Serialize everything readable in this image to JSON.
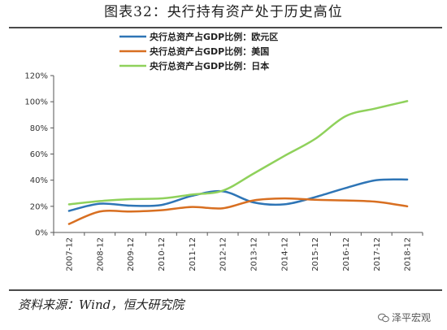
{
  "title": "图表32：央行持有资产处于历史高位",
  "source": "资料来源：Wind，恒大研究院",
  "watermark": "泽平宏观",
  "chart_data": {
    "type": "line",
    "categories": [
      "2007-12",
      "2008-12",
      "2009-12",
      "2010-12",
      "2011-12",
      "2012-12",
      "2013-12",
      "2014-12",
      "2015-12",
      "2016-12",
      "2017-12",
      "2018-12"
    ],
    "ylim": [
      0,
      120
    ],
    "yticks": [
      0,
      20,
      40,
      60,
      80,
      100,
      120
    ],
    "ytick_labels": [
      "0%",
      "20%",
      "40%",
      "60%",
      "80%",
      "100%",
      "120%"
    ],
    "legend_position": "top-center",
    "series": [
      {
        "name": "央行总资产占GDP比例：欧元区",
        "color": "#2e75b6",
        "values": [
          16.5,
          22,
          20.5,
          21,
          28,
          31.5,
          23,
          21.5,
          27,
          34,
          40,
          40.5
        ]
      },
      {
        "name": "央行总资产占GDP比例：美国",
        "color": "#d86f21",
        "values": [
          6.5,
          16,
          16,
          17,
          19.5,
          18.5,
          24.5,
          26,
          25,
          24.5,
          23.5,
          20
        ]
      },
      {
        "name": "央行总资产占GDP比例：日本",
        "color": "#8fd15b",
        "values": [
          21.5,
          24,
          25.5,
          26,
          29,
          32,
          45,
          58.5,
          71.5,
          89,
          95,
          100.5
        ]
      }
    ]
  }
}
